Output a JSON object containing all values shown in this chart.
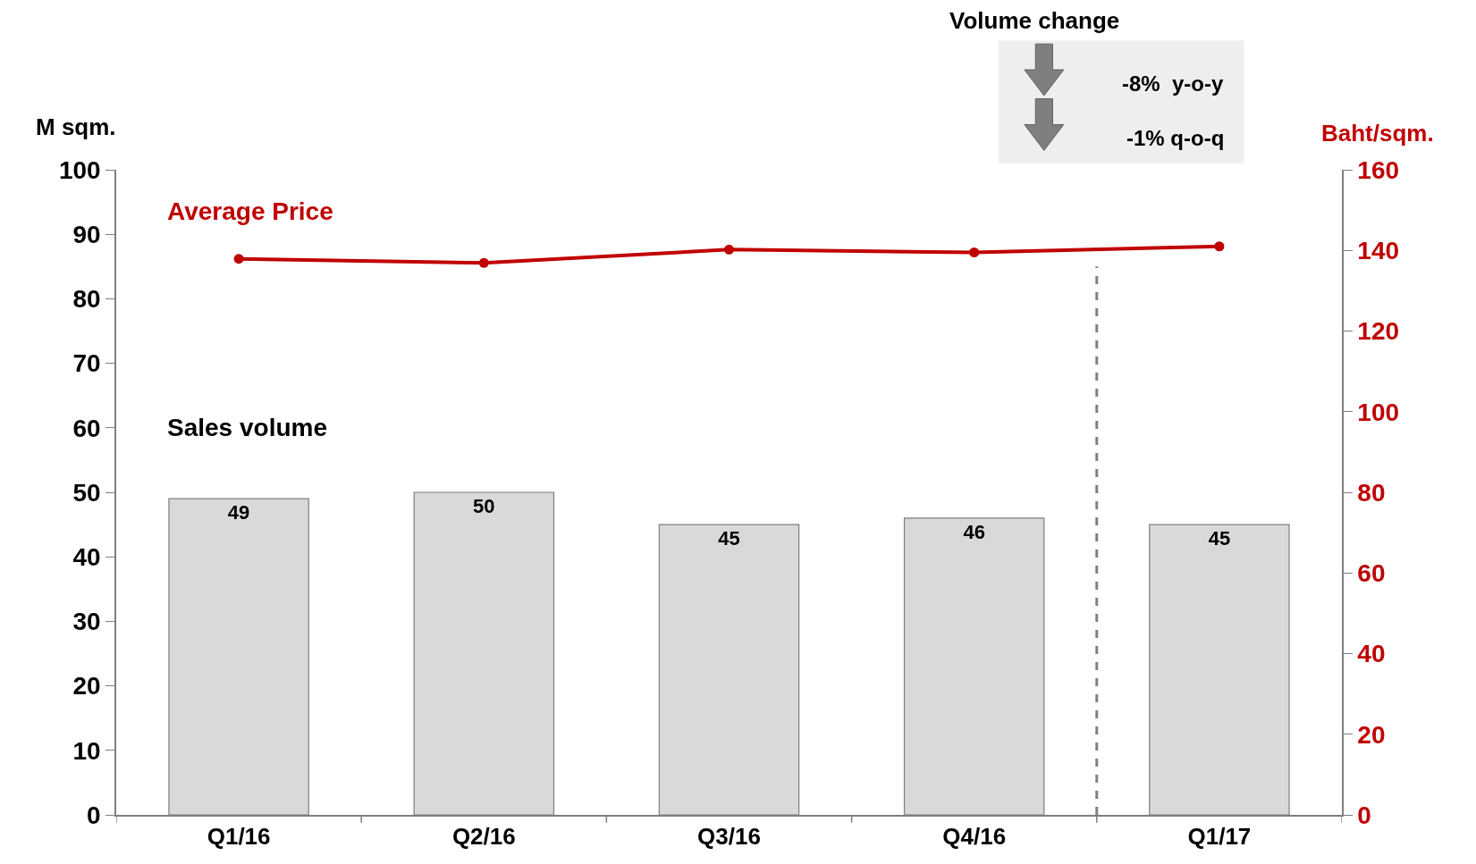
{
  "chart_data": {
    "type": "bar",
    "categories": [
      "Q1/16",
      "Q2/16",
      "Q3/16",
      "Q4/16",
      "Q1/17"
    ],
    "series": [
      {
        "name": "Sales volume",
        "color": "#d9d9d9",
        "values": [
          49,
          50,
          45,
          46,
          45
        ],
        "value_labels": [
          "49",
          "50",
          "45",
          "46",
          "45"
        ]
      },
      {
        "name": "Average Price",
        "type": "line",
        "axis": "y2",
        "color": "#c00000",
        "values": [
          137.9,
          136.9,
          140.2,
          139.5,
          141.0
        ]
      }
    ],
    "ylabel": "M sqm.",
    "y2label": "Baht/sqm.",
    "ylim": [
      0,
      100
    ],
    "yticks": [
      0,
      10,
      20,
      30,
      40,
      50,
      60,
      70,
      80,
      90,
      100
    ],
    "y2lim": [
      0,
      160
    ],
    "y2ticks": [
      0,
      20,
      40,
      60,
      80,
      100,
      120,
      140,
      160
    ],
    "annotations": [
      "Volume change",
      "-8%  y-o-y",
      "-1% q-o-q"
    ],
    "marker": "circle",
    "legend": false
  }
}
